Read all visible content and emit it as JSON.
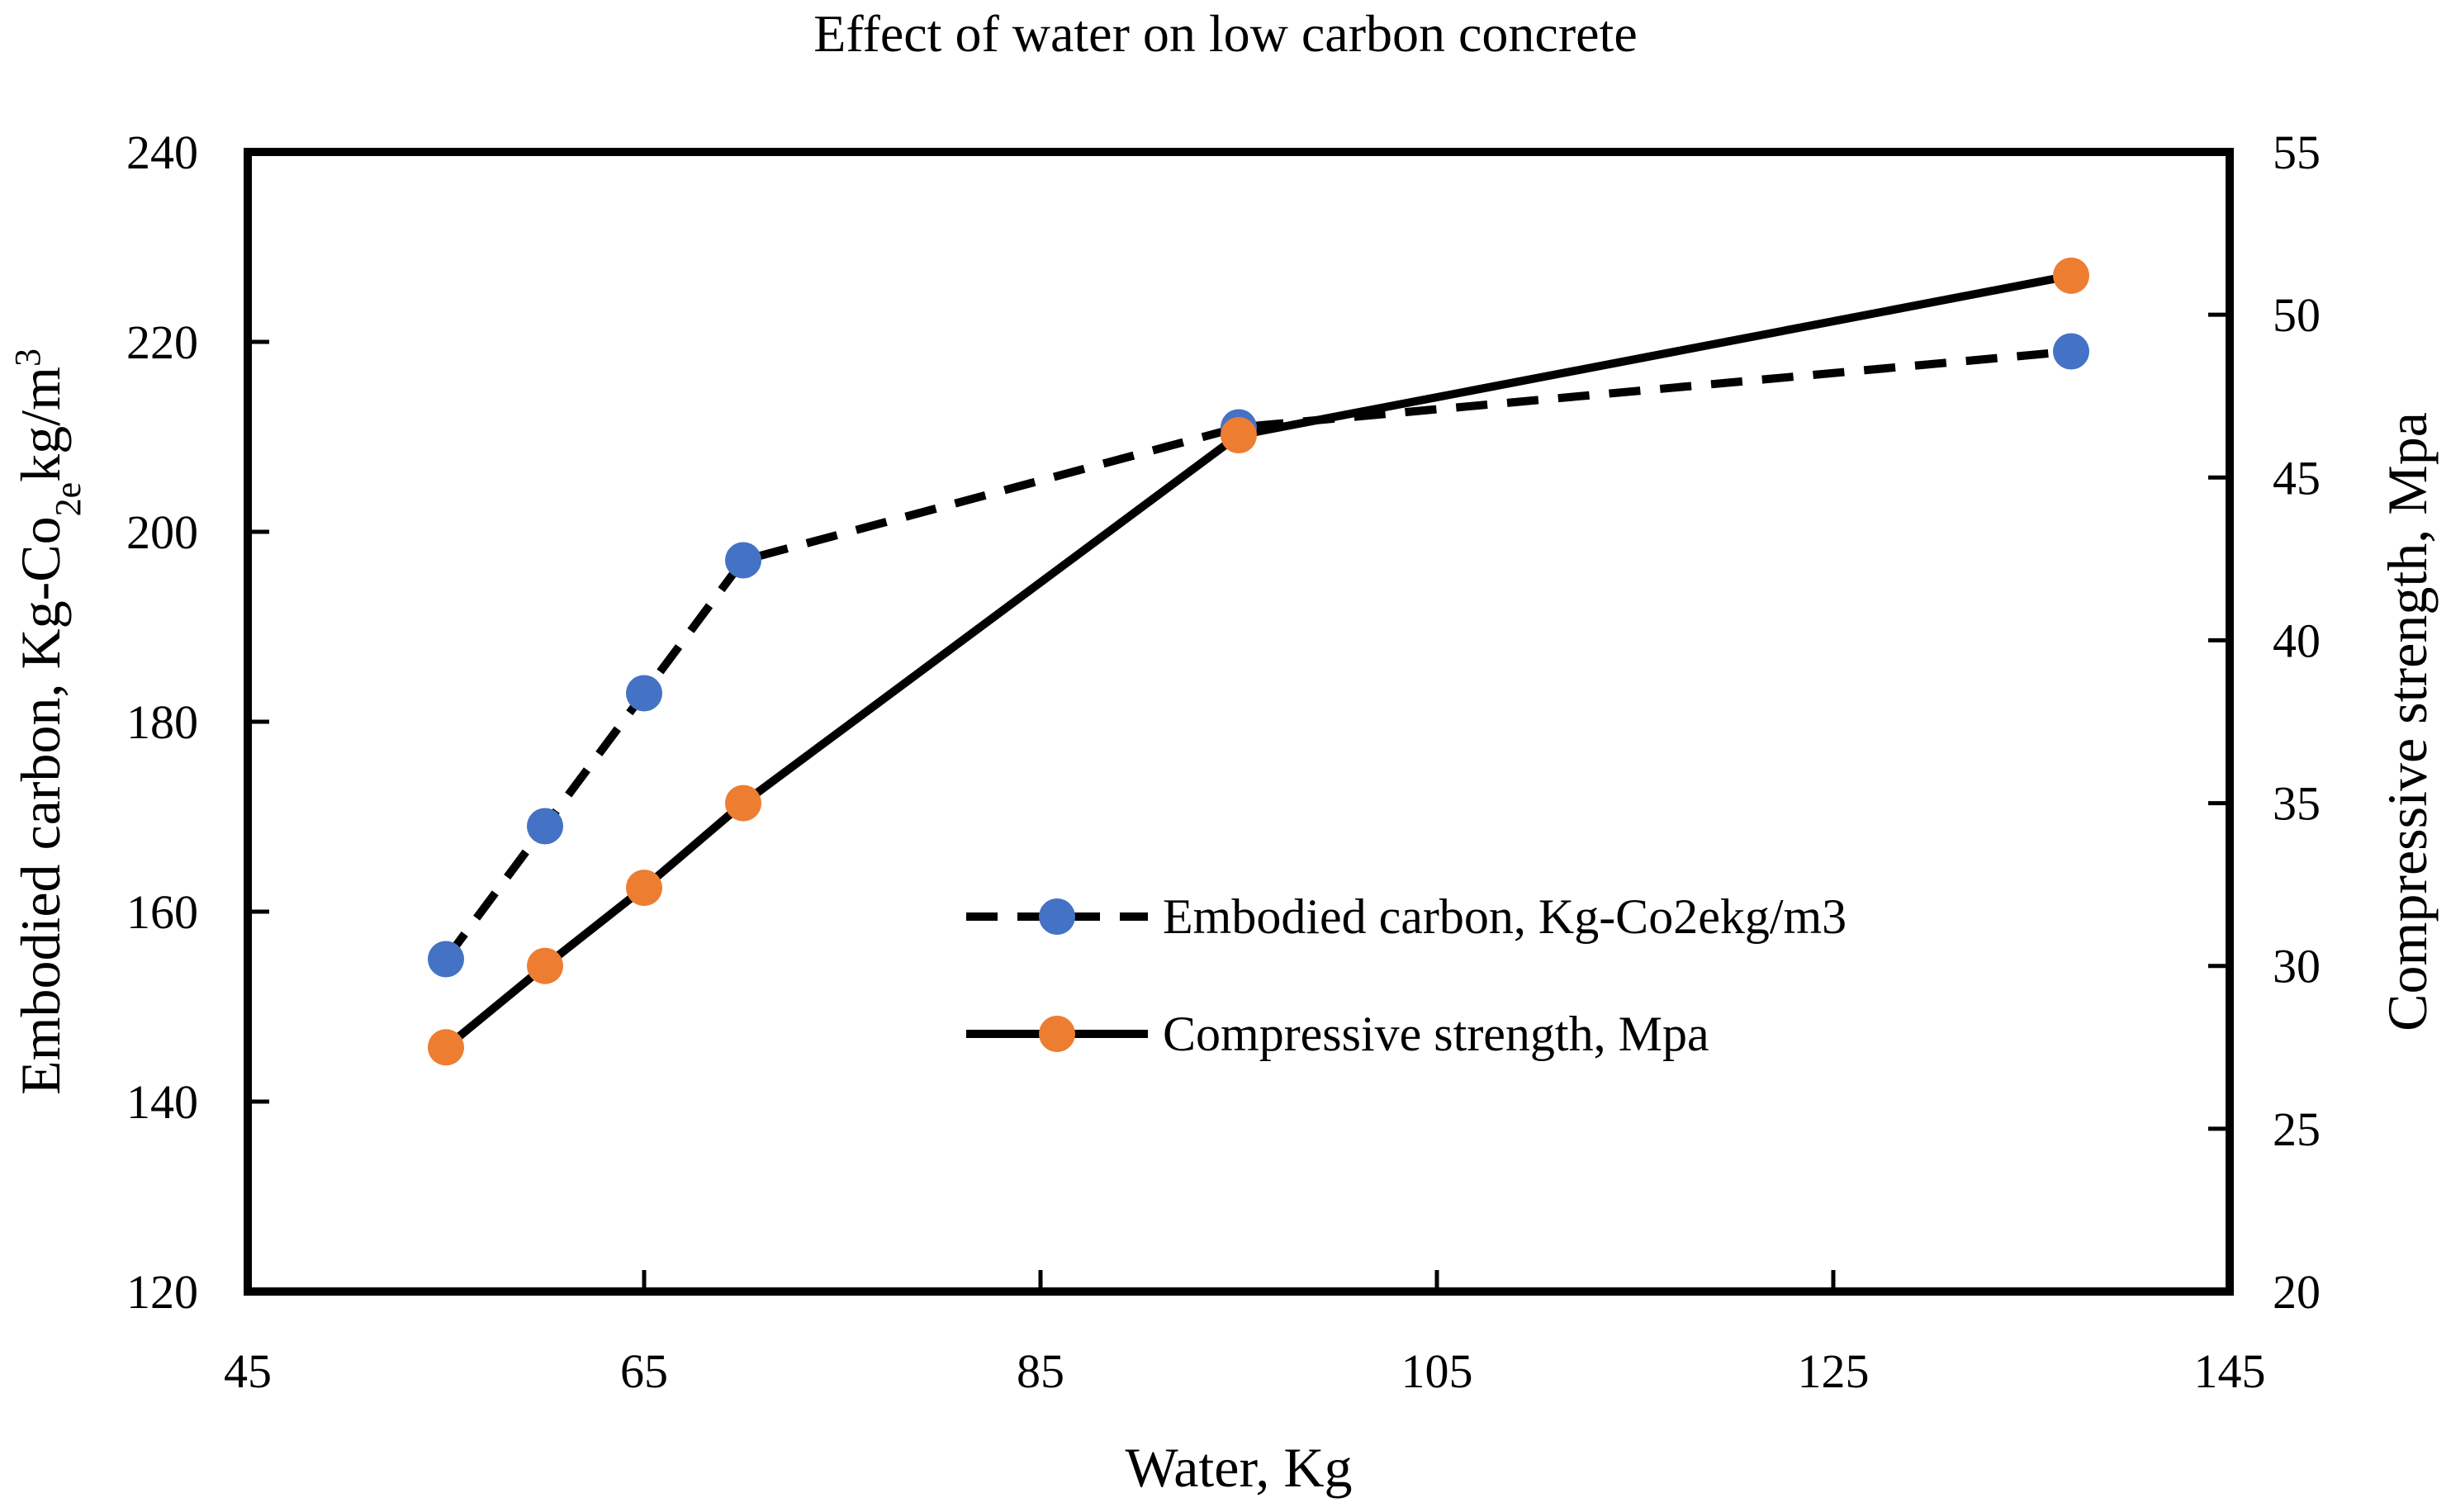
{
  "chart_data": {
    "type": "line",
    "title": "Effect of water on low carbon concrete",
    "xlabel": "Water, Kg",
    "ylabel_left": {
      "parts": [
        "Embodied carbon, Kg-Co",
        "2e",
        "kg/m",
        "3"
      ]
    },
    "ylabel_right": "Compressive strength, Mpa",
    "xlim": [
      45,
      145
    ],
    "xticks": [
      45,
      65,
      85,
      105,
      125,
      145
    ],
    "ylim_left": [
      120,
      240
    ],
    "yticks_left": [
      120,
      140,
      160,
      180,
      200,
      220,
      240
    ],
    "ylim_right": [
      20,
      55
    ],
    "yticks_right": [
      20,
      25,
      30,
      35,
      40,
      45,
      50,
      55
    ],
    "legend_position": "center-right",
    "series": [
      {
        "name": "Embodied carbon, Kg-Co2ekg/m3",
        "axis": "left",
        "line_style": "dashed",
        "line_color": "#000000",
        "marker_color": "#4472C4",
        "x": [
          55,
          60,
          65,
          70,
          95,
          137
        ],
        "y": [
          155,
          169,
          183,
          197,
          211,
          219
        ]
      },
      {
        "name": "Compressive strength, Mpa",
        "axis": "right",
        "line_style": "solid",
        "line_color": "#000000",
        "marker_color": "#ED7D31",
        "x": [
          55,
          60,
          65,
          70,
          95,
          137
        ],
        "y": [
          27.5,
          30.0,
          32.4,
          35.0,
          46.3,
          51.2
        ]
      }
    ]
  }
}
